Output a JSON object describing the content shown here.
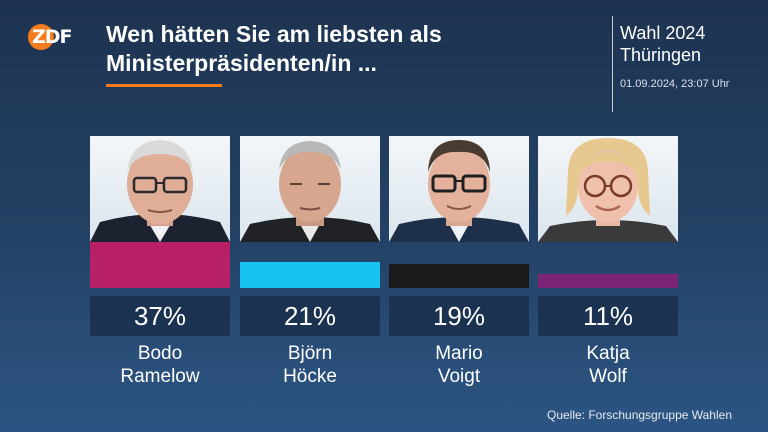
{
  "brand": {
    "logo_text": "ZDF",
    "accent": "#f47c1c"
  },
  "header": {
    "question": "Wen hätten Sie am liebsten als Ministerpräsidenten/in ...",
    "question_line1": "Wen hätten Sie am liebsten als",
    "question_line2": "Ministerpräsidenten/in ...",
    "election_title": "Wahl 2024",
    "election_subtitle": "Thüringen",
    "timestamp": "01.09.2024, 23:07 Uhr"
  },
  "chart_data": {
    "type": "bar",
    "categories": [
      "Bodo Ramelow",
      "Björn Höcke",
      "Mario Voigt",
      "Katja Wolf"
    ],
    "values": [
      37,
      21,
      19,
      11
    ],
    "value_labels": [
      "37%",
      "21%",
      "19%",
      "11%"
    ],
    "colors": [
      "#b72067",
      "#16c3f1",
      "#1a1a1a",
      "#7a2377"
    ],
    "ylim": [
      0,
      37
    ],
    "legend": "none",
    "grid": false
  },
  "candidates": [
    {
      "first": "Bodo",
      "last": "Ramelow",
      "value_label": "37%",
      "color": "#b72067"
    },
    {
      "first": "Björn",
      "last": "Höcke",
      "value_label": "21%",
      "color": "#16c3f1"
    },
    {
      "first": "Mario",
      "last": "Voigt",
      "value_label": "19%",
      "color": "#1a1a1a"
    },
    {
      "first": "Katja",
      "last": "Wolf",
      "value_label": "11%",
      "color": "#7a2377"
    }
  ],
  "footer": {
    "source": "Quelle: Forschungsgruppe Wahlen"
  }
}
